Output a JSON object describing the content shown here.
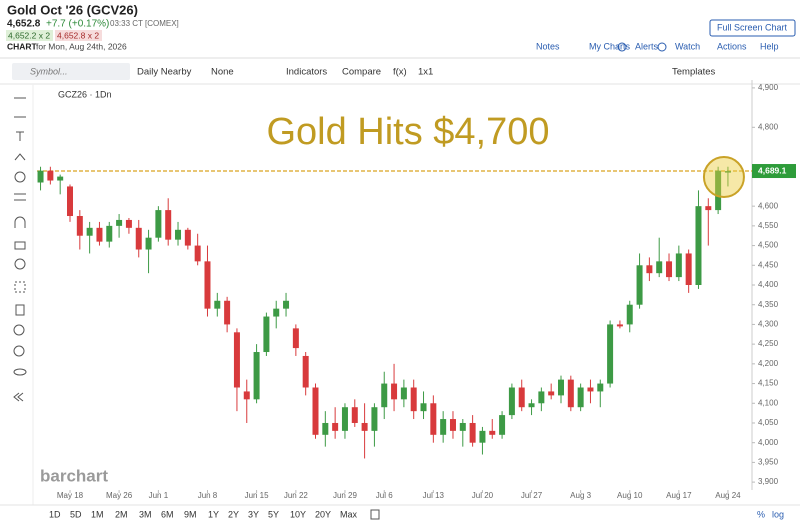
{
  "header": {
    "title": "Gold Oct '26 (GCV26)",
    "last": "4,652.8",
    "change": "+7.7 (+0.17%)",
    "time": "03:33 CT [COMEX]",
    "bid": "4,652.2 x 2",
    "ask": "4,652.8 x 2",
    "chart_label": "CHART",
    "chart_date": "for Mon, Aug 24th, 2026",
    "full_screen": "Full Screen Chart",
    "links": [
      "Notes",
      "My Charts",
      "Alerts",
      "Watch",
      "Actions",
      "Help"
    ]
  },
  "toolbar": {
    "symbol_placeholder": "Symbol...",
    "items": [
      "Daily Nearby",
      "None",
      "Indicators",
      "Compare",
      "f(x)",
      "1x1"
    ],
    "templates": "Templates"
  },
  "timeframes": [
    "1D",
    "5D",
    "1M",
    "2M",
    "3M",
    "6M",
    "9M",
    "1Y",
    "2Y",
    "3Y",
    "5Y",
    "10Y",
    "20Y",
    "Max"
  ],
  "scale_options": [
    "%",
    "log"
  ],
  "chart_data": {
    "type": "candlestick",
    "symbol_label": "GCZ26 · 1Dn",
    "annotation": "Gold Hits $4,700",
    "watermark": "barchart",
    "up_color": "#3d9a45",
    "down_color": "#d83a3c",
    "annotation_color": "#c09b22",
    "price_line_color": "#d9a520",
    "price_label_color": "#2e9c3a",
    "last_price": {
      "value": 4689.1,
      "label": "4,689.1"
    },
    "categories": [
      null,
      null,
      null,
      "May 18",
      null,
      null,
      null,
      null,
      "May 26",
      null,
      null,
      null,
      "Jun 1",
      null,
      null,
      null,
      null,
      "Jun 8",
      null,
      null,
      null,
      null,
      "Jun 15",
      null,
      null,
      null,
      "Jun 22",
      null,
      null,
      null,
      null,
      "Jun 29",
      null,
      null,
      null,
      "Jul 6",
      null,
      null,
      null,
      null,
      "Jul 13",
      null,
      null,
      null,
      null,
      "Jul 20",
      null,
      null,
      null,
      null,
      "Jul 27",
      null,
      null,
      null,
      null,
      "Aug 3",
      null,
      null,
      null,
      null,
      "Aug 10",
      null,
      null,
      null,
      null,
      "Aug 17",
      null,
      null,
      null,
      null,
      "Aug 24"
    ],
    "open": [
      4660,
      4690,
      4665,
      4650,
      4575,
      4525,
      4545,
      4510,
      4550,
      4565,
      4545,
      4490,
      4520,
      4590,
      4515,
      4540,
      4500,
      4460,
      4340,
      4360,
      4280,
      4130,
      4110,
      4230,
      4320,
      4340,
      4290,
      4220,
      4140,
      4020,
      4050,
      4030,
      4090,
      4050,
      4030,
      4090,
      4150,
      4110,
      4140,
      4080,
      4100,
      4020,
      4060,
      4030,
      4050,
      4000,
      4030,
      4020,
      4070,
      4140,
      4090,
      4100,
      4130,
      4120,
      4160,
      4090,
      4140,
      4130,
      4150,
      4300,
      4300,
      4350,
      4450,
      4430,
      4460,
      4420,
      4480,
      4400,
      4600,
      4590,
      4685
    ],
    "high": [
      4700,
      4700,
      4680,
      4655,
      4590,
      4560,
      4560,
      4560,
      4580,
      4570,
      4565,
      4540,
      4600,
      4620,
      4560,
      4545,
      4530,
      4500,
      4380,
      4370,
      4290,
      4160,
      4250,
      4330,
      4360,
      4380,
      4300,
      4230,
      4150,
      4080,
      4090,
      4100,
      4110,
      4100,
      4100,
      4180,
      4200,
      4160,
      4160,
      4130,
      4120,
      4080,
      4080,
      4060,
      4070,
      4040,
      4060,
      4080,
      4150,
      4160,
      4110,
      4140,
      4150,
      4170,
      4170,
      4150,
      4160,
      4160,
      4310,
      4310,
      4360,
      4480,
      4470,
      4520,
      4480,
      4500,
      4490,
      4640,
      4620,
      4700,
      4700
    ],
    "low": [
      4640,
      4655,
      4630,
      4560,
      4490,
      4480,
      4500,
      4495,
      4520,
      4530,
      4470,
      4430,
      4510,
      4500,
      4500,
      4490,
      4450,
      4320,
      4320,
      4280,
      4080,
      4050,
      4100,
      4220,
      4290,
      4320,
      4220,
      4120,
      4010,
      3990,
      4010,
      4010,
      4040,
      3960,
      3990,
      4060,
      4080,
      4090,
      4060,
      4060,
      4000,
      4000,
      4010,
      3990,
      3990,
      3970,
      4010,
      4010,
      4060,
      4080,
      4070,
      4080,
      4110,
      4100,
      4080,
      4080,
      4100,
      4090,
      4140,
      4290,
      4280,
      4340,
      4410,
      4420,
      4410,
      4410,
      4380,
      4390,
      4500,
      4580,
      4650
    ],
    "close": [
      4690,
      4665,
      4675,
      4575,
      4525,
      4545,
      4510,
      4550,
      4565,
      4545,
      4490,
      4520,
      4590,
      4515,
      4540,
      4500,
      4460,
      4340,
      4360,
      4300,
      4140,
      4110,
      4230,
      4320,
      4340,
      4360,
      4240,
      4140,
      4020,
      4050,
      4030,
      4090,
      4050,
      4030,
      4090,
      4150,
      4110,
      4140,
      4080,
      4100,
      4020,
      4060,
      4030,
      4050,
      4000,
      4030,
      4020,
      4070,
      4140,
      4090,
      4100,
      4130,
      4120,
      4160,
      4090,
      4140,
      4130,
      4150,
      4300,
      4295,
      4350,
      4450,
      4430,
      4460,
      4420,
      4480,
      4400,
      4600,
      4590,
      4690,
      4689.1
    ],
    "ylim": [
      3880,
      4920
    ],
    "yticks": [
      {
        "value": 3900,
        "label": "3,900"
      },
      {
        "value": 3950,
        "label": "3,950"
      },
      {
        "value": 4000,
        "label": "4,000"
      },
      {
        "value": 4050,
        "label": "4,050"
      },
      {
        "value": 4100,
        "label": "4,100"
      },
      {
        "value": 4150,
        "label": "4,150"
      },
      {
        "value": 4200,
        "label": "4,200"
      },
      {
        "value": 4250,
        "label": "4,250"
      },
      {
        "value": 4300,
        "label": "4,300"
      },
      {
        "value": 4350,
        "label": "4,350"
      },
      {
        "value": 4400,
        "label": "4,400"
      },
      {
        "value": 4450,
        "label": "4,450"
      },
      {
        "value": 4500,
        "label": "4,500"
      },
      {
        "value": 4550,
        "label": "4,550"
      },
      {
        "value": 4600,
        "label": "4,600"
      },
      {
        "value": 4800,
        "label": "4,800"
      },
      {
        "value": 4900,
        "label": "4,900"
      }
    ],
    "grid": false
  }
}
